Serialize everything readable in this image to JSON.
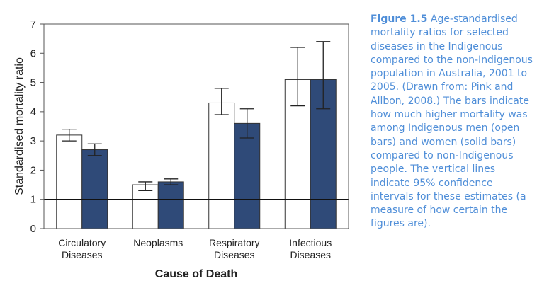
{
  "chart_data": {
    "type": "bar",
    "ylabel": "Standardised mortality ratio",
    "xlabel": "Cause of Death",
    "ylim": [
      0,
      7
    ],
    "yticks": [
      "0",
      "1",
      "2",
      "3",
      "4",
      "5",
      "6",
      "7"
    ],
    "reference_line": 1,
    "categories": [
      {
        "line1": "Circulatory",
        "line2": "Diseases"
      },
      {
        "line1": "Neoplasms",
        "line2": ""
      },
      {
        "line1": "Respiratory",
        "line2": "Diseases"
      },
      {
        "line1": "Infectious",
        "line2": "Diseases"
      }
    ],
    "series": [
      {
        "fill": "#ffffff",
        "values": [
          3.2,
          1.5,
          4.3,
          5.1
        ],
        "ci_low": [
          3.0,
          1.3,
          3.9,
          4.2
        ],
        "ci_high": [
          3.4,
          1.6,
          4.8,
          6.2
        ]
      },
      {
        "fill": "#2f4a78",
        "values": [
          2.7,
          1.6,
          3.6,
          5.1
        ],
        "ci_low": [
          2.5,
          1.5,
          3.1,
          4.1
        ],
        "ci_high": [
          2.9,
          1.7,
          4.1,
          6.4
        ]
      }
    ]
  },
  "caption": {
    "label": "Figure 1.5",
    "text": "Age-standardised mortality ratios for selected diseases in the Indigenous compared to the non-Indigenous population in Australia, 2001 to 2005. (Drawn from: Pink and Allbon, 2008.) The bars indicate how much higher mortality was among Indigenous men (open bars) and women (solid bars) compared to non-Indigenous people. The vertical lines indicate 95% confidence intervals for these estimates (a measure of how certain the figures are)."
  }
}
